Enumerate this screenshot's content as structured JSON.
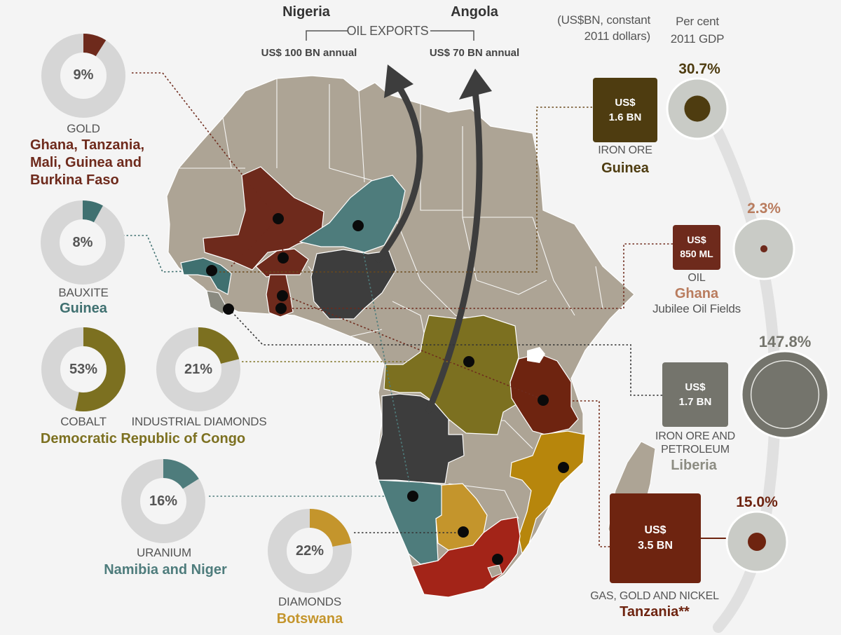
{
  "header": {
    "nigeria": "Nigeria",
    "angola": "Angola",
    "oil_exports": "OIL EXPORTS",
    "nigeria_value": "US$ 100 BN annual",
    "angola_value": "US$ 70 BN annual",
    "units_line1": "(US$BN, constant",
    "units_line2": "2011 dollars)",
    "gdp_line1": "Per cent",
    "gdp_line2": "2011 GDP"
  },
  "donuts": [
    {
      "id": "gold",
      "pct_label": "9%",
      "value": 9,
      "color": "#6e2a1c",
      "resource": "GOLD",
      "country_lines": [
        "Ghana, Tanzania,",
        "Mali, Guinea and",
        "Burkina Faso"
      ]
    },
    {
      "id": "bauxite",
      "pct_label": "8%",
      "value": 8,
      "color": "#3f7070",
      "resource": "BAUXITE",
      "country_lines": [
        "Guinea"
      ]
    },
    {
      "id": "cobalt",
      "pct_label": "53%",
      "value": 53,
      "color": "#7c7020",
      "resource": "COBALT"
    },
    {
      "id": "industrial_diamonds",
      "pct_label": "21%",
      "value": 21,
      "color": "#7c7020",
      "resource": "INDUSTRIAL DIAMONDS"
    },
    {
      "id": "uranium",
      "pct_label": "16%",
      "value": 16,
      "color": "#4e7c7c",
      "resource": "URANIUM",
      "country_lines": [
        "Namibia and Niger"
      ]
    },
    {
      "id": "diamonds",
      "pct_label": "22%",
      "value": 22,
      "color": "#c4952c",
      "resource": "DIAMONDS",
      "country_lines": [
        "Botswana"
      ]
    }
  ],
  "drc_label": "Democratic Republic of Congo",
  "deals": [
    {
      "id": "guinea",
      "box_line1": "US$",
      "box_line2": "1.6 BN",
      "gdp_pct": "30.7%",
      "gdp_value": 30.7,
      "resource": [
        "IRON ORE"
      ],
      "country": "Guinea",
      "color": "#4e3c10",
      "country_color": "#4e3c10"
    },
    {
      "id": "ghana",
      "box_line1": "US$",
      "box_line2": "850 ML",
      "gdp_pct": "2.3%",
      "gdp_value": 2.3,
      "resource": [
        "OIL"
      ],
      "country": "Ghana",
      "extra": "Jubilee Oil Fields",
      "color": "#6e2a1c",
      "country_color": "#b97c5e"
    },
    {
      "id": "liberia",
      "box_line1": "US$",
      "box_line2": "1.7 BN",
      "gdp_pct": "147.8%",
      "gdp_value": 147.8,
      "resource": [
        "IRON ORE AND",
        "PETROLEUM"
      ],
      "country": "Liberia",
      "color": "#74746c",
      "country_color": "#8c8c82"
    },
    {
      "id": "tanzania",
      "box_line1": "US$",
      "box_line2": "3.5 BN",
      "gdp_pct": "15.0%",
      "gdp_value": 15.0,
      "resource": [
        "GAS, GOLD AND NICKEL"
      ],
      "country": "Tanzania**",
      "color": "#6e2410",
      "country_color": "#6e2410"
    }
  ],
  "colors": {
    "land": "#ada495",
    "ring_track": "#d6d6d6",
    "gdp_circle": "#c9cbc6",
    "arc": "#e0e0e0",
    "arrow": "#3d3d3d",
    "nigeria_angola": "#3d3d3d",
    "bauxite_teal": "#3f7070",
    "niger_teal": "#4e7c7c",
    "gold_brown": "#6e2a1c",
    "drc_olive": "#7c7020",
    "tanzania_brown": "#6e2410",
    "mozambique_amber": "#b7860c",
    "botswana_amber": "#c4952c",
    "southafrica_red": "#a32418"
  }
}
